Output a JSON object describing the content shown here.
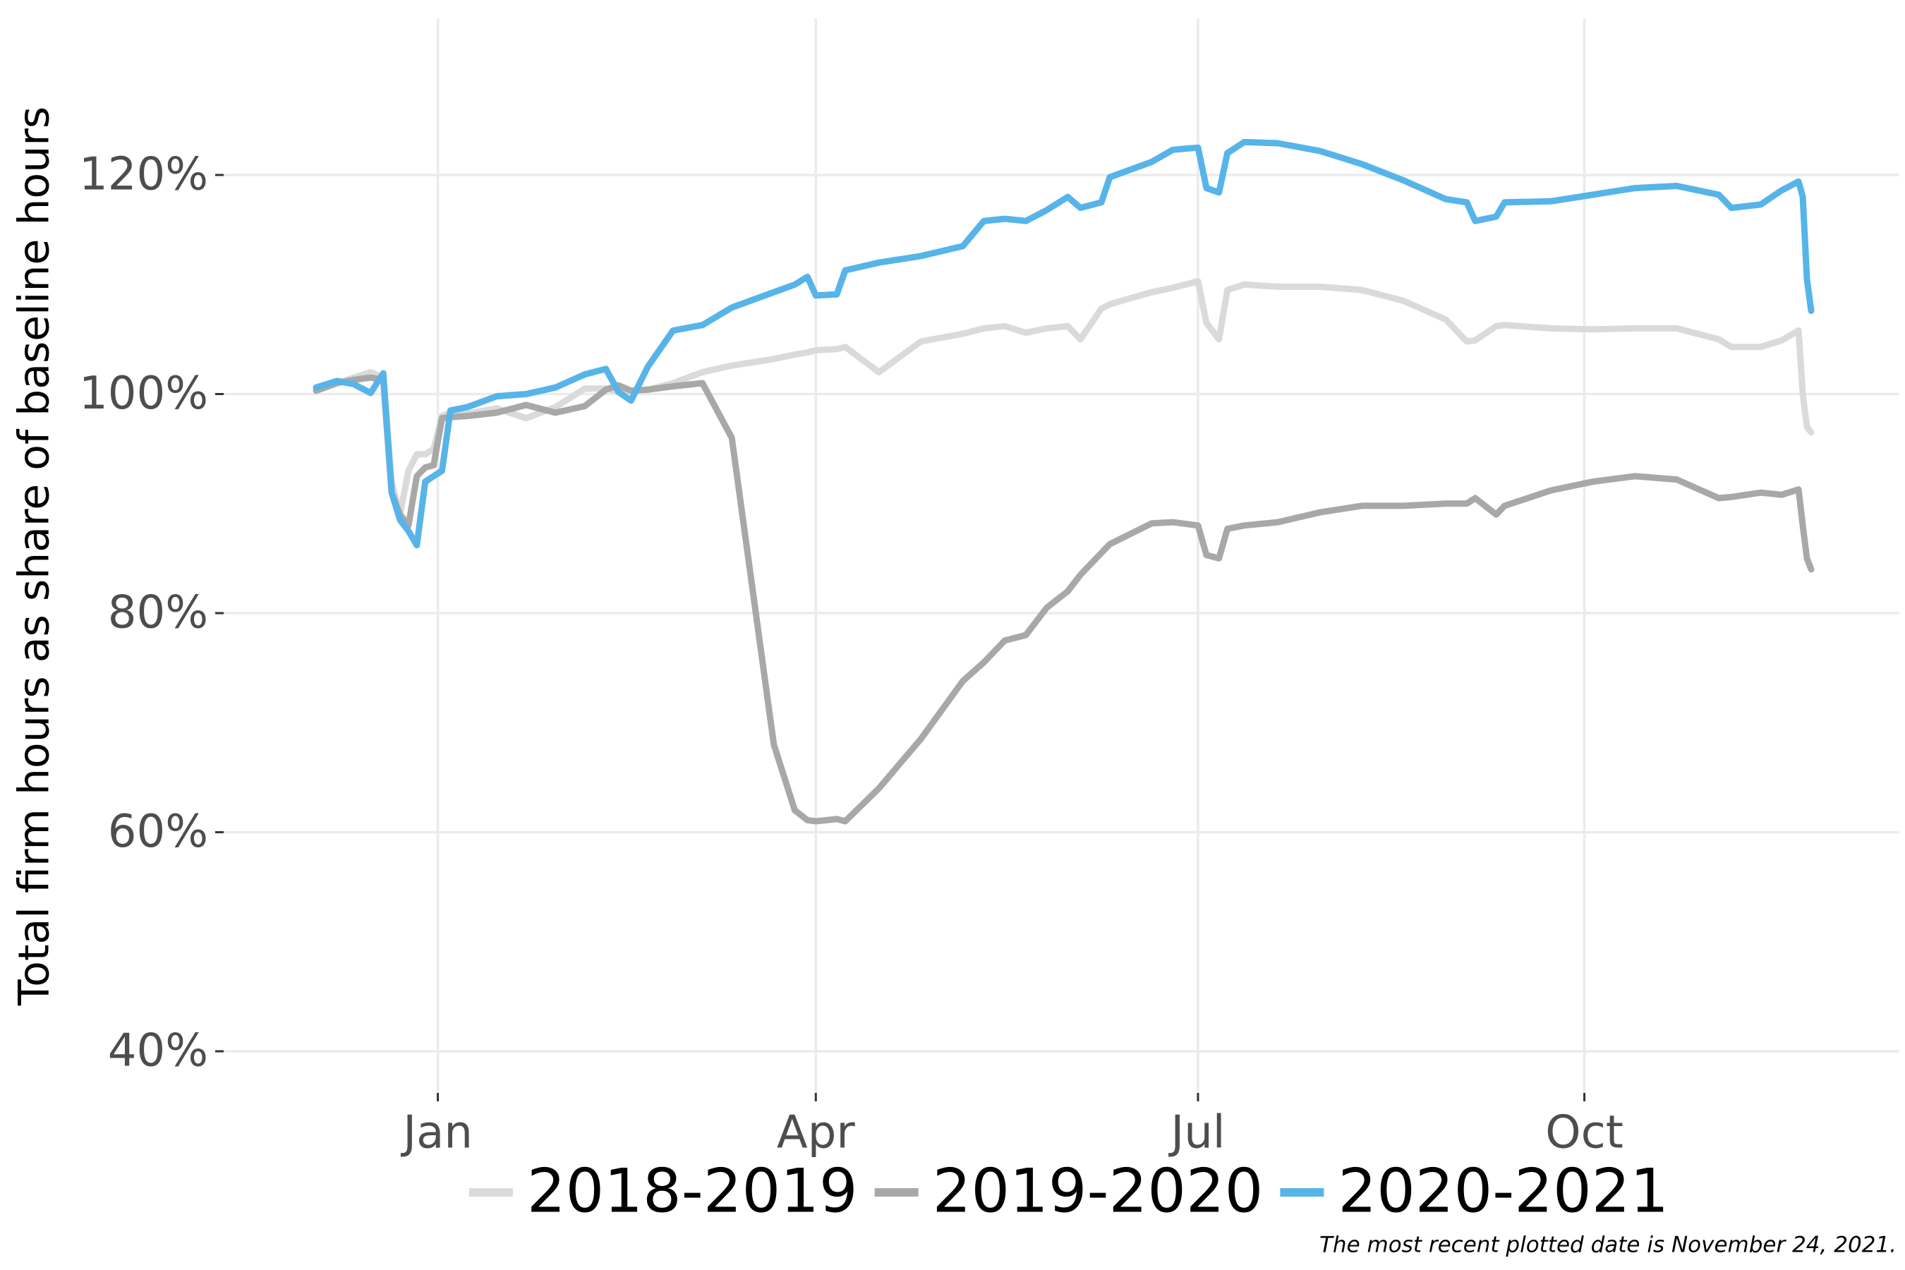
{
  "chart_data": {
    "type": "line",
    "y_label": "Total firm hours as share of baseline hours",
    "caption": "The most recent plotted date is November 24, 2021.",
    "grid": true,
    "legend": "bottom",
    "xlim": [
      -51,
      348
    ],
    "xticks": [
      {
        "value": 0,
        "label": "Jan"
      },
      {
        "value": 90,
        "label": "Apr"
      },
      {
        "value": 181,
        "label": "Jul"
      },
      {
        "value": 273,
        "label": "Oct"
      }
    ],
    "ylim": [
      36.2,
      134.3
    ],
    "yticks": [
      {
        "value": 40,
        "label": "40%"
      },
      {
        "value": 60,
        "label": "60%"
      },
      {
        "value": 80,
        "label": "80%"
      },
      {
        "value": 100,
        "label": "100%"
      },
      {
        "value": 120,
        "label": "120%"
      }
    ],
    "x": [
      -29,
      -24,
      -20,
      -16,
      -13,
      -11,
      -9,
      -7,
      -5,
      -3,
      -1,
      1,
      3,
      7,
      14,
      21,
      28,
      35,
      40,
      43,
      46,
      50,
      56,
      63,
      70,
      75,
      80,
      85,
      88,
      90,
      95,
      97,
      105,
      115,
      125,
      130,
      135,
      140,
      145,
      150,
      153,
      158,
      160,
      170,
      175,
      181,
      183,
      186,
      188,
      192,
      200,
      210,
      220,
      230,
      240,
      245,
      247,
      252,
      254,
      265,
      275,
      285,
      295,
      305,
      308,
      315,
      320,
      324,
      325,
      326,
      327
    ],
    "series": [
      {
        "name": "2018-2019",
        "color": "#dadada",
        "values": [
          100.3,
          101.0,
          101.5,
          102.0,
          101.5,
          92,
          89,
          93,
          94.5,
          94.5,
          95,
          98,
          98.3,
          98.2,
          98.7,
          97.8,
          98.8,
          100.5,
          100.5,
          100.2,
          100.3,
          100.4,
          101,
          102,
          102.6,
          102.9,
          103.2,
          103.6,
          103.8,
          104,
          104.1,
          104.3,
          102,
          104.8,
          105.5,
          106.0,
          106.2,
          105.6,
          106.0,
          106.2,
          105,
          107.8,
          108.2,
          109.3,
          109.7,
          110.3,
          106.5,
          105,
          109.5,
          110.0,
          109.8,
          109.8,
          109.5,
          108.5,
          106.8,
          104.8,
          104.9,
          106.2,
          106.3,
          106.0,
          105.9,
          106,
          106,
          105,
          104.3,
          104.3,
          104.9,
          105.8,
          100,
          97,
          96.5
        ]
      },
      {
        "name": "2019-2020",
        "color": "#a8a8a8",
        "values": [
          100.3,
          101.0,
          101.3,
          101.5,
          101.3,
          91,
          89,
          88,
          92.5,
          93.3,
          93.5,
          97.8,
          97.9,
          98,
          98.3,
          99.0,
          98.3,
          98.9,
          100.4,
          100.8,
          100.3,
          100.4,
          100.7,
          101,
          96,
          82,
          68,
          62,
          61.1,
          61,
          61.2,
          61,
          64,
          68.5,
          73.8,
          75.5,
          77.5,
          78,
          80.5,
          82.0,
          83.5,
          85.5,
          86.3,
          88.2,
          88.3,
          88,
          85.3,
          85.0,
          87.7,
          88,
          88.3,
          89.2,
          89.8,
          89.8,
          90,
          90,
          90.5,
          89,
          89.8,
          91.2,
          92,
          92.5,
          92.2,
          90.5,
          90.6,
          91,
          90.8,
          91.3,
          88,
          85,
          84
        ]
      },
      {
        "name": "2020-2021",
        "color": "#56b4e9",
        "values": [
          100.6,
          101.2,
          100.9,
          100.1,
          101.9,
          91,
          88.5,
          87.5,
          86.2,
          92,
          92.5,
          93,
          98.5,
          98.8,
          99.8,
          100.0,
          100.6,
          101.8,
          102.3,
          100.2,
          99.4,
          102.5,
          105.8,
          106.3,
          107.9,
          108.6,
          109.3,
          110.0,
          110.7,
          109.0,
          109.1,
          111.3,
          112.0,
          112.6,
          113.5,
          115.8,
          116.0,
          115.8,
          116.8,
          118.0,
          117.0,
          117.5,
          119.8,
          121.2,
          122.3,
          122.5,
          118.8,
          118.4,
          122.0,
          123.0,
          122.9,
          122.2,
          121.0,
          119.5,
          117.8,
          117.5,
          115.8,
          116.2,
          117.5,
          117.6,
          118.2,
          118.8,
          119.0,
          118.2,
          117.0,
          117.3,
          118.6,
          119.4,
          118,
          110.5,
          107.6
        ]
      }
    ]
  }
}
